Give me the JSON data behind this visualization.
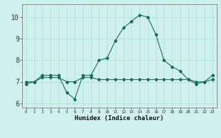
{
  "hours": [
    0,
    1,
    2,
    3,
    4,
    5,
    6,
    7,
    8,
    9,
    10,
    11,
    12,
    13,
    14,
    15,
    16,
    17,
    18,
    19,
    20,
    21,
    22,
    23
  ],
  "humidex": [
    6.9,
    7.0,
    7.3,
    7.3,
    7.3,
    6.5,
    6.2,
    7.3,
    7.3,
    8.0,
    8.1,
    8.9,
    9.5,
    9.8,
    10.1,
    10.0,
    9.2,
    8.0,
    7.7,
    7.5,
    7.1,
    6.9,
    7.0,
    7.3
  ],
  "flat_line": [
    7.0,
    7.0,
    7.2,
    7.2,
    7.2,
    7.0,
    7.0,
    7.2,
    7.2,
    7.1,
    7.1,
    7.1,
    7.1,
    7.1,
    7.1,
    7.1,
    7.1,
    7.1,
    7.1,
    7.1,
    7.1,
    7.0,
    7.0,
    7.1
  ],
  "line_color": "#1a6b5a",
  "bg_color": "#cff0ec",
  "grid_color": "#aaddda",
  "ylim": [
    5.8,
    10.6
  ],
  "xlim": [
    -0.5,
    23.5
  ],
  "xlabel": "Humidex (Indice chaleur)",
  "yticks": [
    6,
    7,
    8,
    9,
    10
  ],
  "xticks": [
    0,
    1,
    2,
    3,
    4,
    5,
    6,
    7,
    8,
    9,
    10,
    11,
    12,
    13,
    14,
    15,
    16,
    17,
    18,
    19,
    20,
    21,
    22,
    23
  ]
}
